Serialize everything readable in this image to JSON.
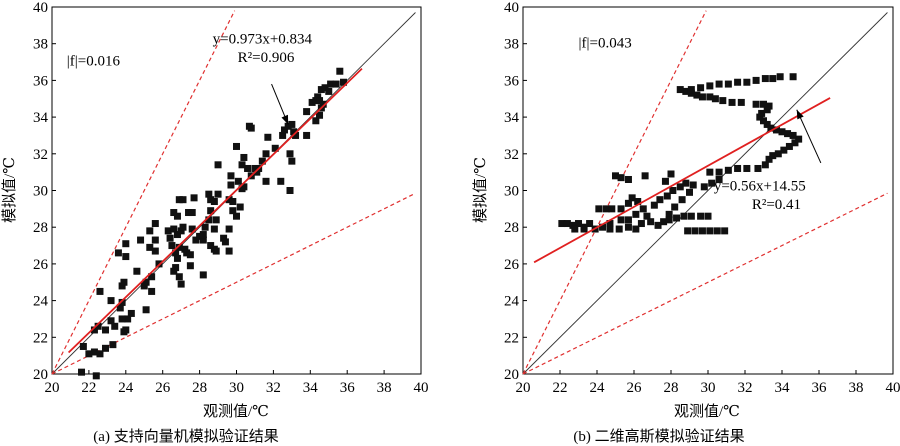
{
  "chart_data": [
    {
      "type": "scatter",
      "panel": "a",
      "caption": "(a) 支持向量机模拟验证结果",
      "xlabel": "观测值/℃",
      "ylabel": "模拟值/℃",
      "xlim": [
        20,
        40
      ],
      "ylim": [
        20,
        40
      ],
      "xticks": [
        "20",
        "22",
        "24",
        "26",
        "28",
        "30",
        "32",
        "34",
        "36",
        "38",
        "40"
      ],
      "yticks": [
        "20",
        "22",
        "24",
        "26",
        "28",
        "30",
        "32",
        "34",
        "36",
        "38",
        "40"
      ],
      "grid": false,
      "annotations": {
        "f_label": "|f|=0.016",
        "equation": "y=0.973x+0.834",
        "r2": "R²=0.906"
      },
      "colors": {
        "points": "#111111",
        "fit": "#e02020",
        "bounds": "#e03030",
        "identity": "#333333"
      },
      "fit": {
        "slope": 0.973,
        "intercept": 0.834,
        "x_range": [
          20.9,
          36.8
        ]
      },
      "bounds": {
        "upper_slope": 2.0,
        "lower_slope": 0.5
      },
      "points": [
        [
          21.6,
          20.1
        ],
        [
          22.4,
          19.9
        ],
        [
          21.7,
          21.5
        ],
        [
          22.0,
          21.1
        ],
        [
          22.3,
          21.2
        ],
        [
          22.6,
          21.1
        ],
        [
          22.9,
          21.4
        ],
        [
          23.3,
          21.6
        ],
        [
          22.3,
          22.4
        ],
        [
          22.5,
          22.6
        ],
        [
          22.9,
          22.4
        ],
        [
          23.2,
          22.9
        ],
        [
          23.4,
          22.6
        ],
        [
          23.9,
          22.3
        ],
        [
          24.0,
          22.4
        ],
        [
          24.1,
          23.0
        ],
        [
          24.3,
          23.3
        ],
        [
          23.8,
          23.0
        ],
        [
          23.7,
          23.6
        ],
        [
          23.8,
          23.9
        ],
        [
          23.2,
          24.0
        ],
        [
          22.6,
          24.5
        ],
        [
          23.8,
          24.8
        ],
        [
          23.9,
          25.0
        ],
        [
          25.1,
          23.5
        ],
        [
          25.4,
          24.5
        ],
        [
          25.0,
          24.8
        ],
        [
          25.1,
          25.0
        ],
        [
          25.4,
          25.3
        ],
        [
          24.6,
          25.6
        ],
        [
          24.0,
          26.4
        ],
        [
          23.6,
          26.6
        ],
        [
          24.0,
          27.1
        ],
        [
          24.8,
          27.3
        ],
        [
          25.3,
          27.8
        ],
        [
          25.6,
          28.2
        ],
        [
          25.3,
          26.9
        ],
        [
          25.6,
          26.7
        ],
        [
          25.6,
          27.3
        ],
        [
          25.8,
          26.0
        ],
        [
          26.3,
          27.8
        ],
        [
          26.6,
          27.9
        ],
        [
          26.4,
          27.4
        ],
        [
          26.5,
          27.0
        ],
        [
          26.7,
          26.6
        ],
        [
          26.8,
          26.3
        ],
        [
          26.6,
          25.6
        ],
        [
          26.9,
          25.3
        ],
        [
          27.0,
          24.9
        ],
        [
          26.7,
          25.8
        ],
        [
          26.9,
          26.9
        ],
        [
          27.2,
          26.8
        ],
        [
          27.3,
          26.6
        ],
        [
          26.8,
          27.6
        ],
        [
          27.0,
          27.8
        ],
        [
          27.1,
          28.0
        ],
        [
          26.6,
          28.8
        ],
        [
          26.8,
          28.6
        ],
        [
          26.9,
          29.5
        ],
        [
          27.1,
          29.5
        ],
        [
          27.4,
          28.8
        ],
        [
          27.6,
          28.8
        ],
        [
          27.6,
          27.9
        ],
        [
          27.8,
          27.3
        ],
        [
          28.0,
          27.5
        ],
        [
          28.2,
          27.3
        ],
        [
          28.3,
          28.0
        ],
        [
          28.2,
          27.6
        ],
        [
          27.5,
          26.5
        ],
        [
          27.5,
          25.9
        ],
        [
          28.2,
          25.4
        ],
        [
          27.7,
          29.6
        ],
        [
          28.5,
          29.8
        ],
        [
          28.6,
          29.5
        ],
        [
          28.8,
          29.4
        ],
        [
          29.0,
          29.8
        ],
        [
          28.6,
          28.9
        ],
        [
          28.5,
          28.4
        ],
        [
          28.8,
          27.9
        ],
        [
          28.9,
          28.4
        ],
        [
          28.6,
          27.0
        ],
        [
          28.8,
          26.8
        ],
        [
          28.9,
          26.7
        ],
        [
          29.3,
          27.4
        ],
        [
          29.4,
          27.2
        ],
        [
          29.6,
          26.7
        ],
        [
          29.6,
          27.9
        ],
        [
          29.0,
          31.4
        ],
        [
          29.7,
          30.8
        ],
        [
          29.7,
          30.3
        ],
        [
          29.6,
          29.5
        ],
        [
          29.8,
          29.4
        ],
        [
          29.8,
          28.9
        ],
        [
          30.0,
          28.6
        ],
        [
          30.2,
          29.1
        ],
        [
          30.0,
          32.4
        ],
        [
          30.1,
          30.5
        ],
        [
          30.3,
          30.1
        ],
        [
          30.4,
          30.2
        ],
        [
          30.3,
          31.4
        ],
        [
          30.4,
          31.8
        ],
        [
          30.6,
          31.2
        ],
        [
          30.8,
          30.8
        ],
        [
          31.0,
          31.2
        ],
        [
          31.1,
          31.0
        ],
        [
          31.2,
          31.2
        ],
        [
          30.7,
          33.5
        ],
        [
          30.8,
          33.4
        ],
        [
          31.4,
          31.6
        ],
        [
          31.6,
          32.0
        ],
        [
          31.7,
          32.9
        ],
        [
          31.6,
          30.5
        ],
        [
          32.1,
          32.3
        ],
        [
          32.4,
          30.5
        ],
        [
          32.5,
          33.0
        ],
        [
          32.6,
          33.3
        ],
        [
          32.8,
          33.5
        ],
        [
          33.0,
          33.6
        ],
        [
          33.1,
          33.2
        ],
        [
          33.2,
          33.0
        ],
        [
          32.9,
          32.0
        ],
        [
          33.0,
          31.6
        ],
        [
          32.9,
          30.0
        ],
        [
          33.8,
          33.0
        ],
        [
          33.8,
          34.3
        ],
        [
          34.1,
          34.8
        ],
        [
          34.3,
          34.9
        ],
        [
          34.4,
          35.1
        ],
        [
          34.6,
          34.5
        ],
        [
          34.3,
          33.8
        ],
        [
          34.5,
          34.1
        ],
        [
          34.6,
          35.5
        ],
        [
          34.8,
          35.6
        ],
        [
          35.0,
          35.4
        ],
        [
          35.1,
          35.8
        ],
        [
          35.4,
          35.8
        ],
        [
          35.6,
          36.5
        ],
        [
          35.8,
          35.9
        ],
        [
          34.7,
          34.7
        ],
        [
          34.5,
          34.9
        ]
      ]
    },
    {
      "type": "scatter",
      "panel": "b",
      "caption": "(b) 二维高斯模拟验证结果",
      "xlabel": "观测值/℃",
      "ylabel": "模拟值/℃",
      "xlim": [
        20,
        40
      ],
      "ylim": [
        20,
        40
      ],
      "xticks": [
        "20",
        "22",
        "24",
        "26",
        "28",
        "30",
        "32",
        "34",
        "36",
        "38",
        "40"
      ],
      "yticks": [
        "20",
        "22",
        "24",
        "26",
        "28",
        "30",
        "32",
        "34",
        "36",
        "38",
        "40"
      ],
      "grid": false,
      "annotations": {
        "f_label": "|f|=0.043",
        "equation": "y=0.56x+14.55",
        "r2": "R²=0.41"
      },
      "colors": {
        "points": "#111111",
        "fit": "#e02020",
        "bounds": "#e03030",
        "identity": "#333333"
      },
      "fit": {
        "slope": 0.56,
        "intercept": 14.55,
        "x_range": [
          20.6,
          36.6
        ]
      },
      "bounds": {
        "upper_slope": 2.0,
        "lower_slope": 0.5
      },
      "points": [
        [
          22.1,
          28.2
        ],
        [
          22.4,
          28.2
        ],
        [
          22.7,
          28.1
        ],
        [
          23.0,
          28.2
        ],
        [
          23.3,
          28.0
        ],
        [
          23.6,
          28.2
        ],
        [
          22.8,
          27.9
        ],
        [
          23.3,
          27.9
        ],
        [
          23.9,
          27.9
        ],
        [
          24.3,
          28.0
        ],
        [
          24.7,
          27.9
        ],
        [
          25.2,
          27.9
        ],
        [
          25.7,
          28.0
        ],
        [
          26.1,
          27.9
        ],
        [
          24.1,
          29.0
        ],
        [
          24.5,
          29.0
        ],
        [
          24.8,
          29.0
        ],
        [
          25.3,
          29.0
        ],
        [
          25.7,
          29.3
        ],
        [
          25.9,
          29.6
        ],
        [
          26.2,
          29.4
        ],
        [
          26.5,
          29.0
        ],
        [
          26.7,
          28.6
        ],
        [
          26.9,
          28.3
        ],
        [
          26.4,
          28.2
        ],
        [
          26.1,
          28.7
        ],
        [
          25.7,
          28.4
        ],
        [
          25.3,
          28.4
        ],
        [
          24.7,
          28.2
        ],
        [
          27.1,
          29.2
        ],
        [
          27.4,
          29.5
        ],
        [
          27.8,
          29.7
        ],
        [
          28.1,
          30.0
        ],
        [
          28.5,
          30.2
        ],
        [
          28.8,
          30.4
        ],
        [
          29.2,
          30.3
        ],
        [
          29.0,
          29.9
        ],
        [
          28.6,
          29.5
        ],
        [
          28.2,
          29.1
        ],
        [
          27.9,
          28.7
        ],
        [
          27.6,
          28.3
        ],
        [
          27.3,
          28.1
        ],
        [
          27.9,
          28.4
        ],
        [
          28.3,
          28.5
        ],
        [
          28.7,
          28.6
        ],
        [
          29.1,
          28.6
        ],
        [
          29.6,
          28.6
        ],
        [
          30.0,
          28.6
        ],
        [
          28.9,
          27.8
        ],
        [
          29.3,
          27.8
        ],
        [
          29.7,
          27.8
        ],
        [
          30.1,
          27.8
        ],
        [
          30.5,
          27.8
        ],
        [
          30.9,
          27.8
        ],
        [
          25.0,
          30.8
        ],
        [
          25.3,
          30.7
        ],
        [
          25.7,
          30.6
        ],
        [
          26.6,
          30.8
        ],
        [
          27.7,
          30.5
        ],
        [
          28.0,
          30.9
        ],
        [
          29.8,
          30.2
        ],
        [
          30.2,
          30.4
        ],
        [
          30.6,
          30.6
        ],
        [
          30.1,
          31.0
        ],
        [
          30.6,
          31.0
        ],
        [
          31.1,
          31.1
        ],
        [
          31.6,
          31.2
        ],
        [
          32.1,
          31.2
        ],
        [
          32.7,
          31.2
        ],
        [
          33.1,
          31.4
        ],
        [
          33.3,
          31.7
        ],
        [
          33.5,
          31.9
        ],
        [
          33.8,
          32.0
        ],
        [
          34.1,
          32.2
        ],
        [
          34.4,
          32.4
        ],
        [
          34.7,
          32.6
        ],
        [
          34.9,
          32.8
        ],
        [
          34.6,
          33.0
        ],
        [
          34.3,
          33.1
        ],
        [
          34.0,
          33.2
        ],
        [
          33.7,
          33.3
        ],
        [
          33.4,
          33.4
        ],
        [
          33.2,
          33.6
        ],
        [
          33.0,
          33.8
        ],
        [
          32.8,
          34.0
        ],
        [
          32.9,
          34.2
        ],
        [
          33.2,
          34.4
        ],
        [
          33.3,
          34.6
        ],
        [
          33.0,
          34.7
        ],
        [
          32.6,
          34.7
        ],
        [
          31.8,
          34.8
        ],
        [
          31.3,
          34.8
        ],
        [
          30.8,
          34.9
        ],
        [
          30.4,
          35.0
        ],
        [
          30.1,
          35.1
        ],
        [
          29.7,
          35.1
        ],
        [
          29.4,
          35.2
        ],
        [
          29.1,
          35.3
        ],
        [
          28.8,
          35.4
        ],
        [
          28.5,
          35.5
        ],
        [
          29.1,
          35.5
        ],
        [
          29.6,
          35.6
        ],
        [
          30.1,
          35.7
        ],
        [
          30.6,
          35.8
        ],
        [
          31.1,
          35.8
        ],
        [
          31.6,
          35.9
        ],
        [
          32.1,
          35.9
        ],
        [
          32.6,
          36.0
        ],
        [
          33.1,
          36.1
        ],
        [
          33.5,
          36.1
        ],
        [
          33.9,
          36.2
        ],
        [
          34.6,
          36.2
        ]
      ]
    }
  ]
}
